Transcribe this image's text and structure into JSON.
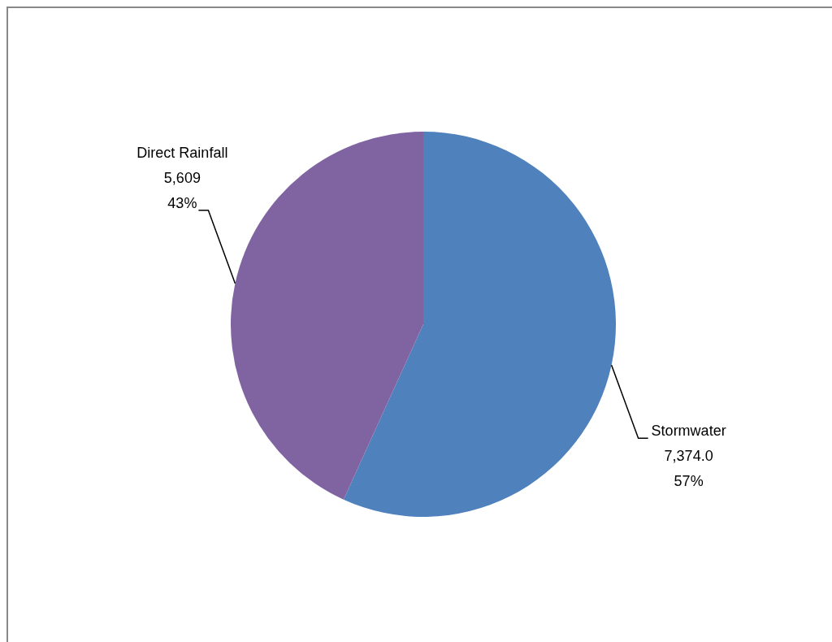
{
  "chart_data": {
    "type": "pie",
    "categories": [
      "Stormwater",
      "Direct Rainfall"
    ],
    "values": [
      7374.0,
      5609
    ],
    "colors": [
      "#4f81bd",
      "#8064a2"
    ],
    "value_labels": [
      "7,374.0\n57%",
      "5,609\n43%"
    ],
    "legend": false
  }
}
